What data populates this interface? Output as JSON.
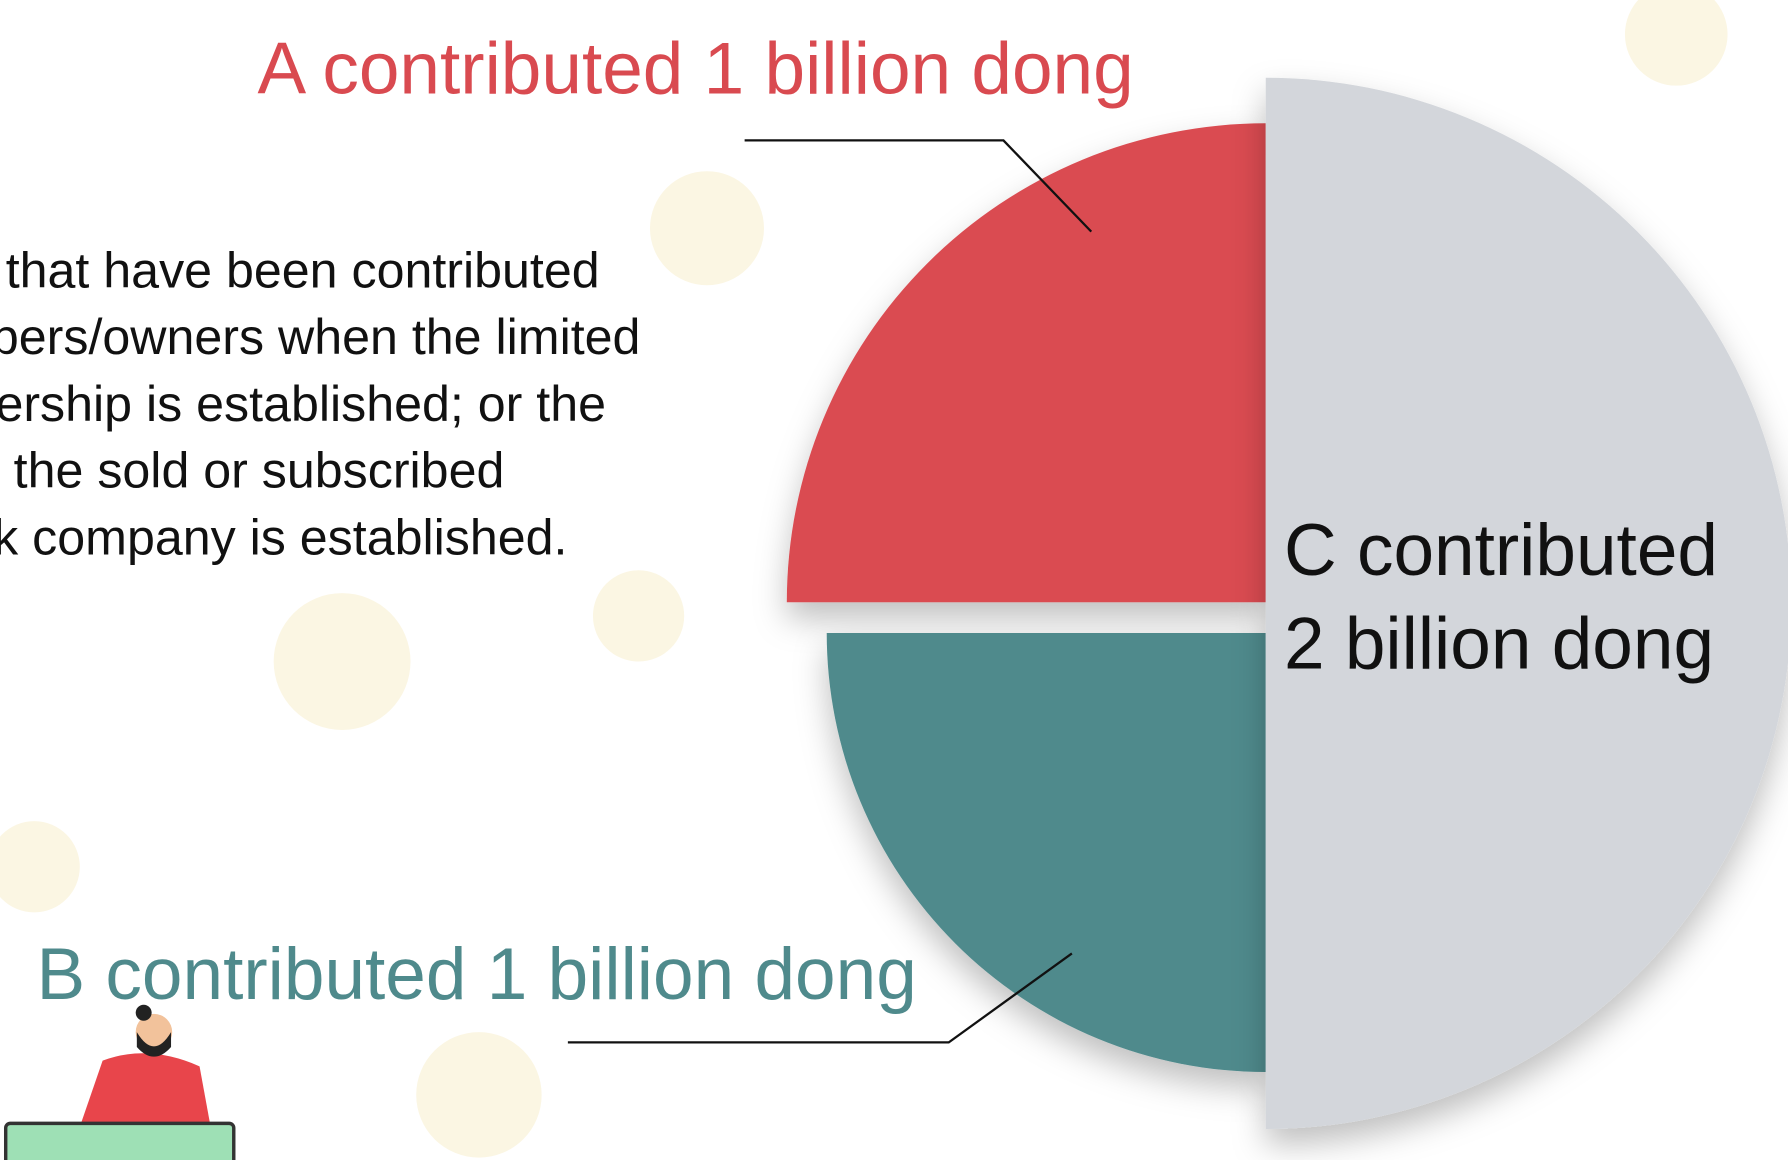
{
  "chart_data": {
    "type": "pie",
    "categories": [
      "A",
      "B",
      "C"
    ],
    "values": [
      1,
      1,
      2
    ],
    "colors": [
      "#da4b51",
      "#4f8a8c",
      "#d3d6db"
    ],
    "labels": [
      "A contributed 1 billion dong",
      "B contributed 1 billion dong",
      [
        "C contributed",
        "2 billion dong"
      ]
    ],
    "label_colors": [
      "#d94a50",
      "#4f8a8c",
      "#111111"
    ]
  },
  "text_lines": [
    "that have been contributed",
    "bers/owners when the limited",
    "ership is established; or the",
    "the sold or subscribed",
    "k company is established."
  ]
}
